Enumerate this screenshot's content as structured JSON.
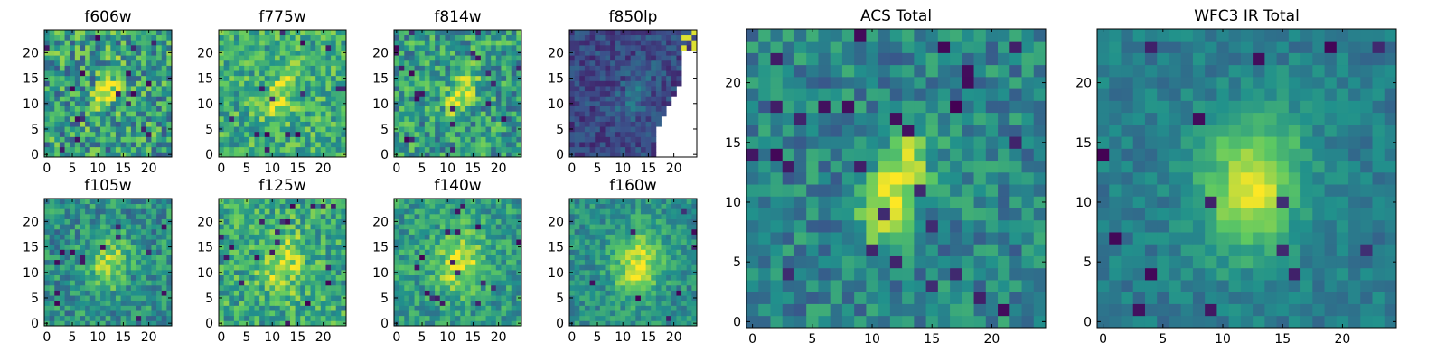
{
  "chart_data": {
    "type": "heatmap",
    "colormap": "viridis",
    "colormap_stops": [
      "#440154",
      "#3b528b",
      "#21918c",
      "#5ec962",
      "#fde725"
    ],
    "grid_size": 25,
    "xlim": [
      0,
      25
    ],
    "ylim": [
      0,
      25
    ],
    "panels": [
      {
        "id": "f606w",
        "title": "f606w",
        "xticks": [
          "0",
          "5",
          "10",
          "15",
          "20"
        ],
        "yticks": [
          "0",
          "5",
          "10",
          "15",
          "20"
        ],
        "source": {
          "cx": 12.5,
          "cy": 13.5,
          "sx": 1.6,
          "sy": 3.5,
          "angle": 0.4,
          "amp": 0.35
        },
        "background": 0.55,
        "noise": 0.3,
        "holes": 0.03,
        "blank_right": false
      },
      {
        "id": "f775w",
        "title": "f775w",
        "xticks": [
          "0",
          "5",
          "10",
          "15",
          "20"
        ],
        "yticks": [
          "0",
          "5",
          "10",
          "15",
          "20"
        ],
        "source": {
          "cx": 12.5,
          "cy": 12.5,
          "sx": 1.8,
          "sy": 3.8,
          "angle": 0.45,
          "amp": 0.3
        },
        "background": 0.62,
        "noise": 0.22,
        "holes": 0.02,
        "blank_right": false
      },
      {
        "id": "f814w",
        "title": "f814w",
        "xticks": [
          "0",
          "5",
          "10",
          "15",
          "20"
        ],
        "yticks": [
          "0",
          "5",
          "10",
          "15",
          "20"
        ],
        "source": {
          "cx": 13,
          "cy": 12.5,
          "sx": 1.6,
          "sy": 3.6,
          "angle": 0.45,
          "amp": 0.4
        },
        "background": 0.55,
        "noise": 0.25,
        "holes": 0.03,
        "blank_right": false
      },
      {
        "id": "f850lp",
        "title": "f850lp",
        "xticks": [
          "0",
          "5",
          "10",
          "15",
          "20"
        ],
        "yticks": [
          "0",
          "5",
          "10",
          "15",
          "20"
        ],
        "source": {
          "cx": 13,
          "cy": 12.5,
          "sx": 2.0,
          "sy": 4.0,
          "angle": 0.45,
          "amp": 0.15
        },
        "background": 0.22,
        "noise": 0.12,
        "holes": 0.0,
        "blank_right": true
      },
      {
        "id": "f105w",
        "title": "f105w",
        "xticks": [
          "0",
          "5",
          "10",
          "15",
          "20"
        ],
        "yticks": [
          "0",
          "5",
          "10",
          "15",
          "20"
        ],
        "source": {
          "cx": 12.5,
          "cy": 12.5,
          "sx": 2.6,
          "sy": 3.8,
          "angle": 0.2,
          "amp": 0.4
        },
        "background": 0.5,
        "noise": 0.2,
        "holes": 0.02,
        "blank_right": false
      },
      {
        "id": "f125w",
        "title": "f125w",
        "xticks": [
          "0",
          "5",
          "10",
          "15",
          "20"
        ],
        "yticks": [
          "0",
          "5",
          "10",
          "15",
          "20"
        ],
        "source": {
          "cx": 12.5,
          "cy": 12.5,
          "sx": 3.2,
          "sy": 4.5,
          "angle": 0.2,
          "amp": 0.3
        },
        "background": 0.6,
        "noise": 0.22,
        "holes": 0.03,
        "blank_right": false
      },
      {
        "id": "f140w",
        "title": "f140w",
        "xticks": [
          "0",
          "5",
          "10",
          "15",
          "20"
        ],
        "yticks": [
          "0",
          "5",
          "10",
          "15",
          "20"
        ],
        "source": {
          "cx": 13,
          "cy": 12.5,
          "sx": 3.0,
          "sy": 4.2,
          "angle": 0.2,
          "amp": 0.4
        },
        "background": 0.55,
        "noise": 0.18,
        "holes": 0.02,
        "blank_right": false
      },
      {
        "id": "f160w",
        "title": "f160w",
        "xticks": [
          "0",
          "5",
          "10",
          "15",
          "20"
        ],
        "yticks": [
          "0",
          "5",
          "10",
          "15",
          "20"
        ],
        "source": {
          "cx": 13.5,
          "cy": 12,
          "sx": 3.2,
          "sy": 4.5,
          "angle": 0.2,
          "amp": 0.45
        },
        "background": 0.5,
        "noise": 0.15,
        "holes": 0.01,
        "blank_right": false
      },
      {
        "id": "acs-total",
        "title": "ACS Total",
        "xticks": [
          "0",
          "5",
          "10",
          "15",
          "20"
        ],
        "yticks": [
          "0",
          "5",
          "10",
          "15",
          "20"
        ],
        "source": {
          "cx": 12.5,
          "cy": 12,
          "sx": 1.6,
          "sy": 3.8,
          "angle": 0.4,
          "amp": 0.5
        },
        "background": 0.45,
        "noise": 0.18,
        "holes": 0.04,
        "blank_right": false
      },
      {
        "id": "wfc3-ir-total",
        "title": "WFC3 IR Total",
        "xticks": [
          "0",
          "5",
          "10",
          "15",
          "20"
        ],
        "yticks": [
          "0",
          "5",
          "10",
          "15",
          "20"
        ],
        "source": {
          "cx": 13,
          "cy": 12,
          "sx": 3.0,
          "sy": 4.2,
          "angle": 0.15,
          "amp": 0.5
        },
        "background": 0.42,
        "noise": 0.1,
        "holes": 0.03,
        "blank_right": false
      }
    ]
  }
}
